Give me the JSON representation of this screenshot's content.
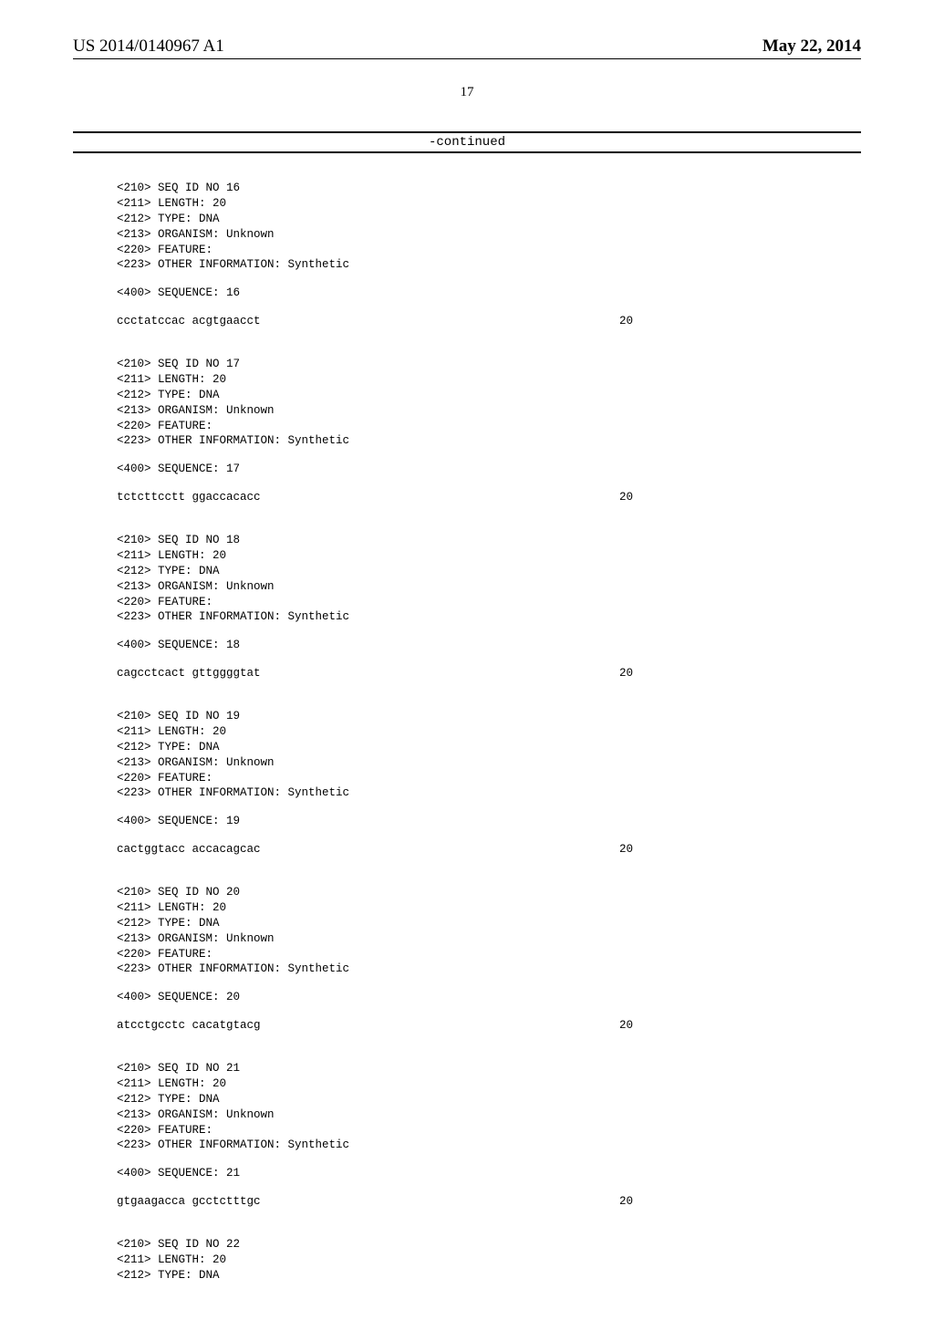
{
  "header": {
    "pub_number": "US 2014/0140967 A1",
    "pub_date": "May 22, 2014"
  },
  "page_number": "17",
  "continued_label": "-continued",
  "entries": [
    {
      "meta": [
        "<210> SEQ ID NO 16",
        "<211> LENGTH: 20",
        "<212> TYPE: DNA",
        "<213> ORGANISM: Unknown",
        "<220> FEATURE:",
        "<223> OTHER INFORMATION: Synthetic"
      ],
      "seq_header": "<400> SEQUENCE: 16",
      "seq_text": "ccctatccac acgtgaacct",
      "seq_len": "20"
    },
    {
      "meta": [
        "<210> SEQ ID NO 17",
        "<211> LENGTH: 20",
        "<212> TYPE: DNA",
        "<213> ORGANISM: Unknown",
        "<220> FEATURE:",
        "<223> OTHER INFORMATION: Synthetic"
      ],
      "seq_header": "<400> SEQUENCE: 17",
      "seq_text": "tctcttcctt ggaccacacc",
      "seq_len": "20"
    },
    {
      "meta": [
        "<210> SEQ ID NO 18",
        "<211> LENGTH: 20",
        "<212> TYPE: DNA",
        "<213> ORGANISM: Unknown",
        "<220> FEATURE:",
        "<223> OTHER INFORMATION: Synthetic"
      ],
      "seq_header": "<400> SEQUENCE: 18",
      "seq_text": "cagcctcact gttggggtat",
      "seq_len": "20"
    },
    {
      "meta": [
        "<210> SEQ ID NO 19",
        "<211> LENGTH: 20",
        "<212> TYPE: DNA",
        "<213> ORGANISM: Unknown",
        "<220> FEATURE:",
        "<223> OTHER INFORMATION: Synthetic"
      ],
      "seq_header": "<400> SEQUENCE: 19",
      "seq_text": "cactggtacc accacagcac",
      "seq_len": "20"
    },
    {
      "meta": [
        "<210> SEQ ID NO 20",
        "<211> LENGTH: 20",
        "<212> TYPE: DNA",
        "<213> ORGANISM: Unknown",
        "<220> FEATURE:",
        "<223> OTHER INFORMATION: Synthetic"
      ],
      "seq_header": "<400> SEQUENCE: 20",
      "seq_text": "atcctgcctc cacatgtacg",
      "seq_len": "20"
    },
    {
      "meta": [
        "<210> SEQ ID NO 21",
        "<211> LENGTH: 20",
        "<212> TYPE: DNA",
        "<213> ORGANISM: Unknown",
        "<220> FEATURE:",
        "<223> OTHER INFORMATION: Synthetic"
      ],
      "seq_header": "<400> SEQUENCE: 21",
      "seq_text": "gtgaagacca gcctctttgc",
      "seq_len": "20"
    }
  ],
  "trailing_meta": [
    "<210> SEQ ID NO 22",
    "<211> LENGTH: 20",
    "<212> TYPE: DNA"
  ]
}
